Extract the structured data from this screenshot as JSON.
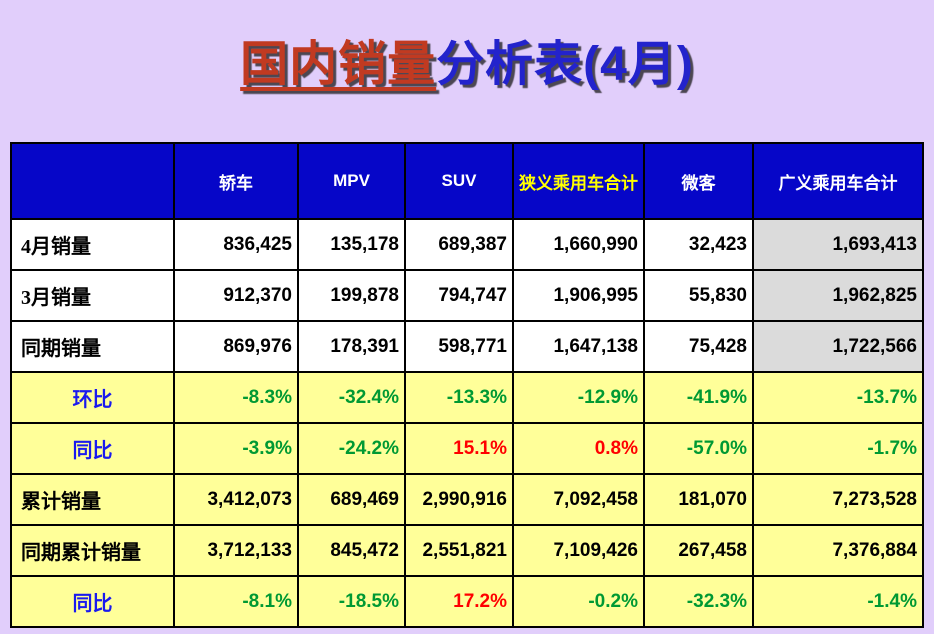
{
  "title": {
    "underlined_part": "国内销量",
    "rest_part": "分析表(4月)"
  },
  "colors": {
    "page_bg": "#E1CEFB",
    "title_red": "#C13A21",
    "title_blue": "#2323CC",
    "header_bg": "#0606C8",
    "header_text": "#FFFFFF",
    "header_accent_text": "#FFFF00",
    "row_yellow_bg": "#FFFF99",
    "cell_gray_bg": "#DBDBDB",
    "negative_green": "#009933",
    "positive_red": "#FF0000",
    "accent_label_blue": "#1A1AEE"
  },
  "table": {
    "columns": [
      {
        "label": "",
        "accent": false
      },
      {
        "label": "轿车",
        "accent": false
      },
      {
        "label": "MPV",
        "accent": false
      },
      {
        "label": "SUV",
        "accent": false
      },
      {
        "label": "狭义乘用车合计",
        "accent": true
      },
      {
        "label": "微客",
        "accent": false
      },
      {
        "label": "广义乘用车合计",
        "accent": false
      }
    ],
    "rows": [
      {
        "label": "4月销量",
        "label_style": "plain",
        "row_style": "white",
        "gray_last": true,
        "cells": [
          {
            "v": "836,425",
            "c": "black"
          },
          {
            "v": "135,178",
            "c": "black"
          },
          {
            "v": "689,387",
            "c": "black"
          },
          {
            "v": "1,660,990",
            "c": "black"
          },
          {
            "v": "32,423",
            "c": "black"
          },
          {
            "v": "1,693,413",
            "c": "black"
          }
        ]
      },
      {
        "label": "3月销量",
        "label_style": "plain",
        "row_style": "white",
        "gray_last": true,
        "cells": [
          {
            "v": "912,370",
            "c": "black"
          },
          {
            "v": "199,878",
            "c": "black"
          },
          {
            "v": "794,747",
            "c": "black"
          },
          {
            "v": "1,906,995",
            "c": "black"
          },
          {
            "v": "55,830",
            "c": "black"
          },
          {
            "v": "1,962,825",
            "c": "black"
          }
        ]
      },
      {
        "label": "同期销量",
        "label_style": "plain",
        "row_style": "white",
        "gray_last": true,
        "cells": [
          {
            "v": "869,976",
            "c": "black"
          },
          {
            "v": "178,391",
            "c": "black"
          },
          {
            "v": "598,771",
            "c": "black"
          },
          {
            "v": "1,647,138",
            "c": "black"
          },
          {
            "v": "75,428",
            "c": "black"
          },
          {
            "v": "1,722,566",
            "c": "black"
          }
        ]
      },
      {
        "label": "环比",
        "label_style": "accent",
        "row_style": "yellow",
        "gray_last": false,
        "cells": [
          {
            "v": "-8.3%",
            "c": "green"
          },
          {
            "v": "-32.4%",
            "c": "green"
          },
          {
            "v": "-13.3%",
            "c": "green"
          },
          {
            "v": "-12.9%",
            "c": "green"
          },
          {
            "v": "-41.9%",
            "c": "green"
          },
          {
            "v": "-13.7%",
            "c": "green"
          }
        ]
      },
      {
        "label": "同比",
        "label_style": "accent",
        "row_style": "yellow",
        "gray_last": false,
        "cells": [
          {
            "v": "-3.9%",
            "c": "green"
          },
          {
            "v": "-24.2%",
            "c": "green"
          },
          {
            "v": "15.1%",
            "c": "red"
          },
          {
            "v": "0.8%",
            "c": "red"
          },
          {
            "v": "-57.0%",
            "c": "green"
          },
          {
            "v": "-1.7%",
            "c": "green"
          }
        ]
      },
      {
        "label": "累计销量",
        "label_style": "plain",
        "row_style": "yellow",
        "gray_last": false,
        "cells": [
          {
            "v": "3,412,073",
            "c": "black"
          },
          {
            "v": "689,469",
            "c": "black"
          },
          {
            "v": "2,990,916",
            "c": "black"
          },
          {
            "v": "7,092,458",
            "c": "black"
          },
          {
            "v": "181,070",
            "c": "black"
          },
          {
            "v": "7,273,528",
            "c": "black"
          }
        ]
      },
      {
        "label": "同期累计销量",
        "label_style": "plain",
        "row_style": "yellow",
        "gray_last": false,
        "cells": [
          {
            "v": "3,712,133",
            "c": "black"
          },
          {
            "v": "845,472",
            "c": "black"
          },
          {
            "v": "2,551,821",
            "c": "black"
          },
          {
            "v": "7,109,426",
            "c": "black"
          },
          {
            "v": "267,458",
            "c": "black"
          },
          {
            "v": "7,376,884",
            "c": "black"
          }
        ]
      },
      {
        "label": "同比",
        "label_style": "accent",
        "row_style": "yellow",
        "gray_last": false,
        "cells": [
          {
            "v": "-8.1%",
            "c": "green"
          },
          {
            "v": "-18.5%",
            "c": "green"
          },
          {
            "v": "17.2%",
            "c": "red"
          },
          {
            "v": "-0.2%",
            "c": "green"
          },
          {
            "v": "-32.3%",
            "c": "green"
          },
          {
            "v": "-1.4%",
            "c": "green"
          }
        ]
      }
    ]
  }
}
